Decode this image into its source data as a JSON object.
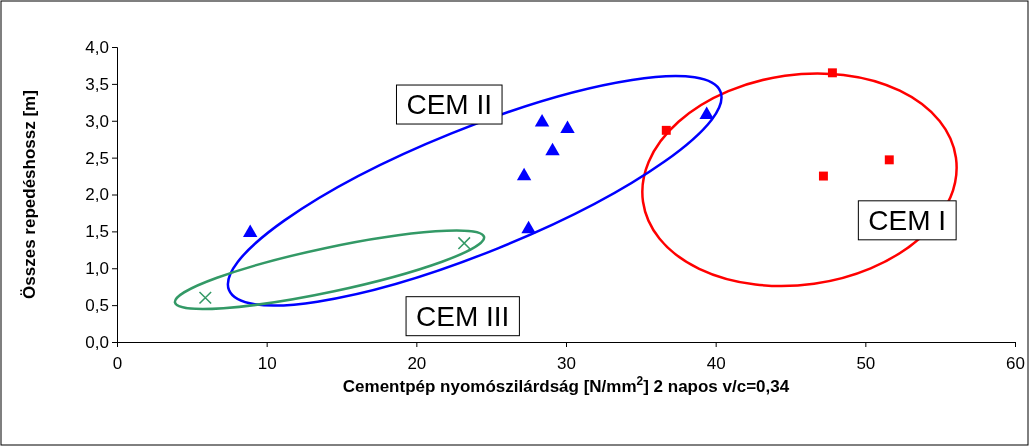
{
  "chart_data": {
    "type": "scatter",
    "xlabel": "Cementpép nyomószilárdság [N/mm$^{2}$] 2 napos v/c=0,34",
    "ylabel": "Összes repedéshossz [m]",
    "xlim": [
      0,
      60
    ],
    "xticks": [
      0,
      10,
      20,
      30,
      40,
      50,
      60
    ],
    "ylim": [
      0,
      4
    ],
    "yticks": [
      {
        "value": 0,
        "label": "0,0"
      },
      {
        "value": 0.5,
        "label": "0,5"
      },
      {
        "value": 1,
        "label": "1,0"
      },
      {
        "value": 1.5,
        "label": "1,5"
      },
      {
        "value": 2,
        "label": "2,0"
      },
      {
        "value": 2.5,
        "label": "2,5"
      },
      {
        "value": 3,
        "label": "3,0"
      },
      {
        "value": 3.5,
        "label": "3,5"
      },
      {
        "value": 4,
        "label": "4,0"
      }
    ],
    "grid": false,
    "series": [
      {
        "name": "CEM I",
        "color": "#ff0000",
        "marker": "square",
        "x": [
          36.7,
          47.8,
          47.2,
          51.6
        ],
        "values": [
          2.87,
          3.65,
          2.25,
          2.47
        ]
      },
      {
        "name": "CEM II",
        "color": "#0000ff",
        "marker": "triangle",
        "x": [
          8.9,
          27.2,
          28.4,
          29.1,
          30.1,
          27.5,
          39.4
        ],
        "values": [
          1.48,
          2.25,
          2.98,
          2.59,
          2.89,
          1.53,
          3.08
        ]
      },
      {
        "name": "CEM III",
        "color": "#339966",
        "marker": "cross",
        "x": [
          5.9,
          23.2
        ],
        "values": [
          0.6,
          1.34
        ]
      }
    ]
  }
}
